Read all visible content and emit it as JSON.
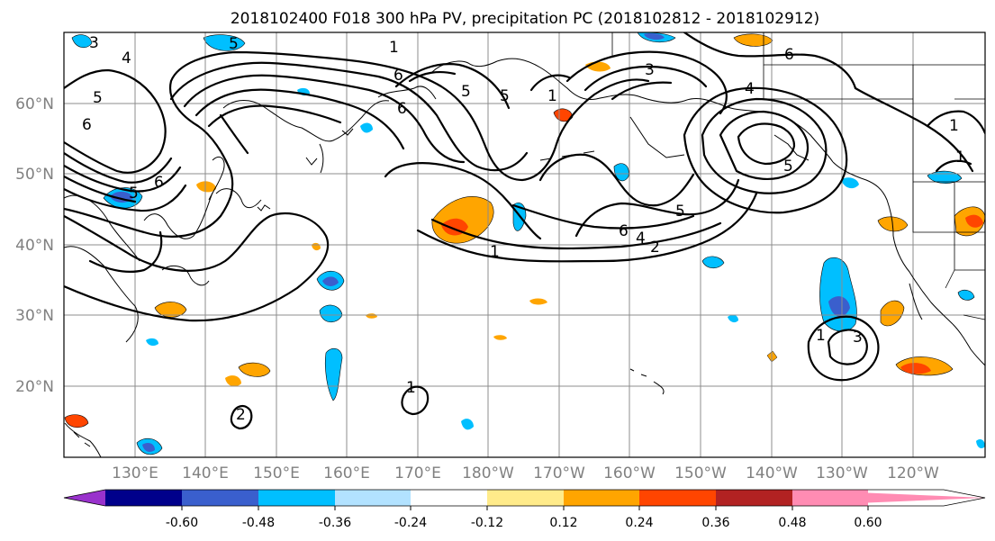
{
  "title": "2018102400 F018 300 hPa PV, precipitation PC (2018102812 - 2018102912)",
  "lat_labels": [
    "60°N",
    "50°N",
    "40°N",
    "30°N",
    "20°N"
  ],
  "lon_labels": [
    "130°E",
    "140°E",
    "150°E",
    "160°E",
    "170°E",
    "180°W",
    "170°W",
    "160°W",
    "150°W",
    "140°W",
    "130°W",
    "120°W"
  ],
  "colorbar": {
    "colors": [
      "#9932cc",
      "#00008b",
      "#3a5fcd",
      "#00bfff",
      "#b2e2ff",
      "#ffffff",
      "#ffeb8a",
      "#ffa500",
      "#ff4500",
      "#b22222",
      "#ff8cb3"
    ],
    "tick_labels": [
      "-0.60",
      "-0.48",
      "-0.36",
      "-0.24",
      "-0.12",
      "0.12",
      "0.24",
      "0.36",
      "0.48",
      "0.60"
    ]
  },
  "contour_labels": [
    "3",
    "5",
    "4",
    "5",
    "6",
    "1",
    "6",
    "5",
    "6",
    "5",
    "3",
    "6",
    "1",
    "4",
    "5",
    "6",
    "5",
    "2",
    "4",
    "6",
    "5",
    "1",
    "3",
    "1",
    "1",
    "2",
    "1",
    "1"
  ]
}
